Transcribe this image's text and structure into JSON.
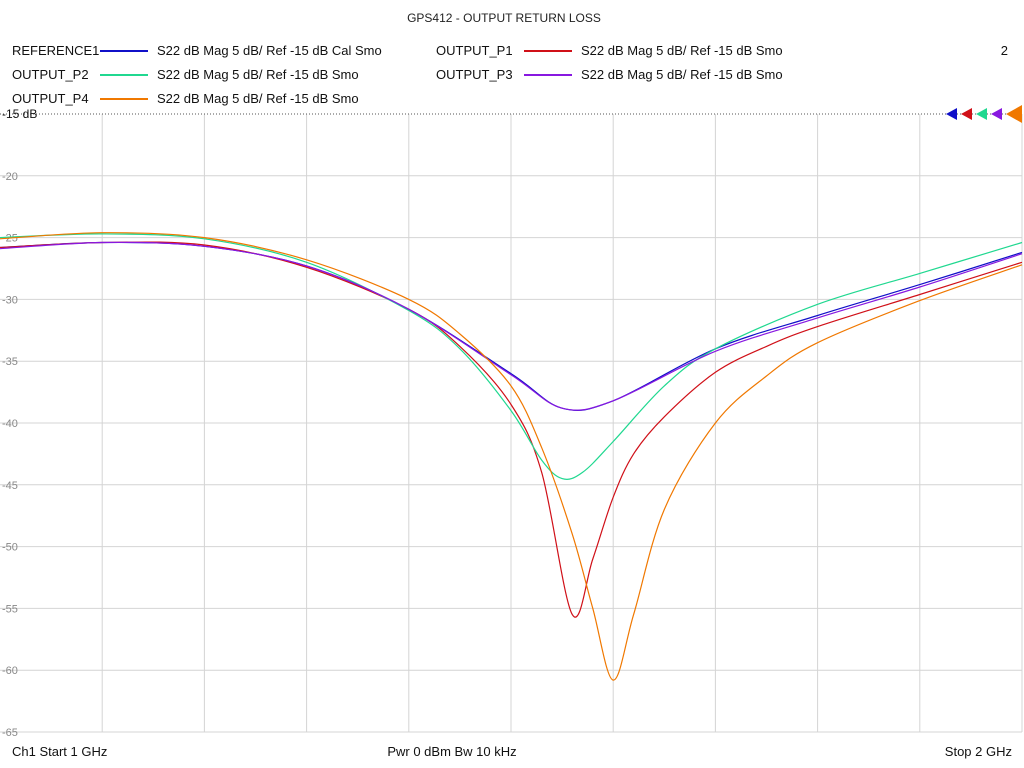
{
  "chart_data": {
    "type": "line",
    "title": "GPS412 - OUTPUT RETURN LOSS",
    "channel_label": "2",
    "x_range_ghz": [
      1,
      2
    ],
    "ylim": [
      -65,
      -15
    ],
    "y_ticks": [
      -15,
      -20,
      -25,
      -30,
      -35,
      -40,
      -45,
      -50,
      -55,
      -60,
      -65
    ],
    "y_tick_labels": [
      "-15 dB",
      "-20",
      "-25",
      "-30",
      "-35",
      "-40",
      "-45",
      "-50",
      "-55",
      "-60",
      "-65"
    ],
    "grid": true,
    "x_divisions": 10,
    "footer": {
      "start": "Ch1  Start  1 GHz",
      "power": "Pwr  0 dBm  Bw  10 kHz",
      "stop": "Stop  2 GHz"
    },
    "series": [
      {
        "name": "REFERENCE1",
        "desc": "S22  dB Mag  5 dB/ Ref -15 dB  Cal Smo",
        "color": "#1010c8",
        "x": [
          1.0,
          1.1,
          1.2,
          1.3,
          1.4,
          1.5,
          1.55,
          1.6,
          1.7,
          1.8,
          1.9,
          2.0
        ],
        "y": [
          -25.8,
          -25.4,
          -25.7,
          -27.3,
          -30.8,
          -36.0,
          -38.8,
          -38.2,
          -34.0,
          -31.3,
          -28.8,
          -26.2
        ]
      },
      {
        "name": "OUTPUT_P1",
        "desc": "S22  dB Mag  5 dB/ Ref -15 dB  Smo",
        "color": "#d01018",
        "x": [
          1.0,
          1.1,
          1.2,
          1.3,
          1.4,
          1.45,
          1.5,
          1.53,
          1.56,
          1.58,
          1.6,
          1.62,
          1.65,
          1.7,
          1.75,
          1.8,
          1.9,
          2.0
        ],
        "y": [
          -25.8,
          -25.4,
          -25.6,
          -27.4,
          -30.8,
          -33.8,
          -38.5,
          -44.0,
          -55.5,
          -51.0,
          -46.0,
          -42.5,
          -39.5,
          -35.9,
          -33.8,
          -32.2,
          -29.6,
          -27.0
        ]
      },
      {
        "name": "OUTPUT_P2",
        "desc": "S22  dB Mag  5 dB/ Ref -15 dB  Smo",
        "color": "#20d890",
        "x": [
          1.0,
          1.1,
          1.2,
          1.3,
          1.4,
          1.45,
          1.5,
          1.53,
          1.55,
          1.57,
          1.6,
          1.65,
          1.7,
          1.8,
          1.9,
          2.0
        ],
        "y": [
          -25.0,
          -24.7,
          -25.1,
          -27.0,
          -30.9,
          -34.0,
          -39.0,
          -43.0,
          -44.5,
          -44.0,
          -41.5,
          -37.0,
          -34.0,
          -30.4,
          -27.9,
          -25.4
        ]
      },
      {
        "name": "OUTPUT_P3",
        "desc": "S22  dB Mag  5 dB/ Ref -15 dB  Smo",
        "color": "#8818e0",
        "x": [
          1.0,
          1.1,
          1.2,
          1.3,
          1.4,
          1.5,
          1.55,
          1.6,
          1.7,
          1.8,
          1.9,
          2.0
        ],
        "y": [
          -25.9,
          -25.4,
          -25.7,
          -27.3,
          -30.8,
          -36.1,
          -38.8,
          -38.2,
          -34.2,
          -31.5,
          -29.0,
          -26.3
        ]
      },
      {
        "name": "OUTPUT_P4",
        "desc": "S22  dB Mag  5 dB/ Ref -15 dB  Smo",
        "color": "#f07800",
        "x": [
          1.0,
          1.1,
          1.2,
          1.3,
          1.4,
          1.45,
          1.5,
          1.53,
          1.56,
          1.58,
          1.6,
          1.62,
          1.65,
          1.7,
          1.75,
          1.8,
          1.9,
          2.0
        ],
        "y": [
          -25.1,
          -24.6,
          -25.0,
          -26.8,
          -30.0,
          -32.8,
          -37.0,
          -42.0,
          -49.0,
          -55.0,
          -60.8,
          -55.5,
          -47.0,
          -40.0,
          -36.2,
          -33.5,
          -30.1,
          -27.2
        ]
      }
    ]
  }
}
